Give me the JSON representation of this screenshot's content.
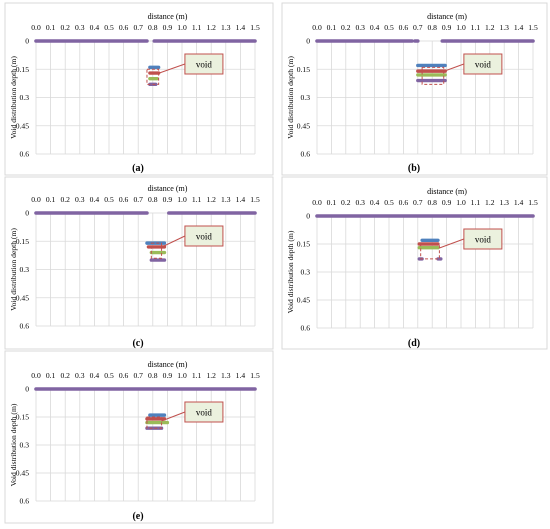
{
  "colors": {
    "surface": "#8064A2",
    "blue": "#4F81BD",
    "red": "#C0504D",
    "green": "#9BBB59",
    "purple": "#8064A2",
    "orange": "#F79646",
    "void_fill": "#EBF1DE",
    "void_border": "#C0504D",
    "grid": "#D9D9D9"
  },
  "chart_data": [
    {
      "type": "line",
      "panel_label": "(a)",
      "xlabel": "distance (m)",
      "ylabel": "Void distribution depth (m)",
      "x_ticks": [
        "0.0",
        "0.1",
        "0.2",
        "0.3",
        "0.4",
        "0.5",
        "0.6",
        "0.7",
        "0.8",
        "0.9",
        "1.0",
        "1.1",
        "1.2",
        "1.3",
        "1.4",
        "1.5"
      ],
      "y_ticks": [
        "0",
        "0.15",
        "0.3",
        "0.45",
        "0.6"
      ],
      "xlim": [
        0,
        1.5
      ],
      "ylim": [
        0,
        0.6
      ],
      "y_inverted": true,
      "x_axis_position": "top",
      "annotation": "void",
      "surface_segments": [
        [
          0,
          0.76
        ],
        [
          0.81,
          1.5
        ]
      ],
      "series": [
        {
          "color": "blue",
          "segments": [
            {
              "x": [
                0.78,
                0.84
              ],
              "y": 0.14
            }
          ]
        },
        {
          "color": "red",
          "segments": [
            {
              "x": [
                0.78,
                0.84
              ],
              "y": 0.17
            }
          ]
        },
        {
          "color": "green",
          "segments": [
            {
              "x": [
                0.78,
                0.83
              ],
              "y": 0.2
            }
          ]
        },
        {
          "color": "purple",
          "segments": [
            {
              "x": [
                0.78,
                0.82
              ],
              "y": 0.23
            }
          ]
        }
      ],
      "void_box": {
        "x": [
          0.76,
          0.84
        ],
        "y": [
          0.15,
          0.23
        ]
      }
    },
    {
      "type": "line",
      "panel_label": "(b)",
      "xlabel": "distance (m)",
      "ylabel": "Void distribution depth (m)",
      "x_ticks": [
        "0.0",
        "0.1",
        "0.2",
        "0.3",
        "0.4",
        "0.5",
        "0.6",
        "0.7",
        "0.8",
        "0.9",
        "1.0",
        "1.1",
        "1.2",
        "1.3",
        "1.4",
        "1.5"
      ],
      "y_ticks": [
        "0",
        "0.15",
        "0.3",
        "0.45",
        "0.6"
      ],
      "xlim": [
        0,
        1.5
      ],
      "ylim": [
        0,
        0.6
      ],
      "y_inverted": true,
      "x_axis_position": "top",
      "annotation": "void",
      "surface_segments": [
        [
          0,
          0.66
        ],
        [
          0.68,
          0.7
        ],
        [
          0.87,
          1.5
        ]
      ],
      "series": [
        {
          "color": "blue",
          "segments": [
            {
              "x": [
                0.7,
                0.89
              ],
              "y": 0.13
            }
          ]
        },
        {
          "color": "red",
          "segments": [
            {
              "x": [
                0.7,
                0.89
              ],
              "y": 0.16
            }
          ]
        },
        {
          "color": "green",
          "segments": [
            {
              "x": [
                0.7,
                0.89
              ],
              "y": 0.18
            }
          ]
        },
        {
          "color": "purple",
          "segments": [
            {
              "x": [
                0.7,
                0.89
              ],
              "y": 0.21
            }
          ]
        }
      ],
      "void_box": {
        "x": [
          0.73,
          0.88
        ],
        "y": [
          0.14,
          0.23
        ]
      }
    },
    {
      "type": "line",
      "panel_label": "(c)",
      "xlabel": "distance (m)",
      "ylabel": "Void distribution depth (m)",
      "x_ticks": [
        "0.0",
        "0.1",
        "0.2",
        "0.3",
        "0.4",
        "0.5",
        "0.6",
        "0.7",
        "0.8",
        "0.9",
        "1.0",
        "1.1",
        "1.2",
        "1.3",
        "1.4",
        "1.5"
      ],
      "y_ticks": [
        "0",
        "0.15",
        "0.3",
        "0.45",
        "0.6"
      ],
      "xlim": [
        0,
        1.5
      ],
      "ylim": [
        0,
        0.6
      ],
      "y_inverted": true,
      "x_axis_position": "top",
      "annotation": "void",
      "surface_segments": [
        [
          0,
          0.76
        ],
        [
          0.91,
          1.5
        ]
      ],
      "series": [
        {
          "color": "blue",
          "segments": [
            {
              "x": [
                0.76,
                0.88
              ],
              "y": 0.16
            }
          ]
        },
        {
          "color": "red",
          "segments": [
            {
              "x": [
                0.77,
                0.88
              ],
              "y": 0.18
            }
          ]
        },
        {
          "color": "green",
          "segments": [
            {
              "x": [
                0.79,
                0.88
              ],
              "y": 0.21
            }
          ]
        },
        {
          "color": "purple",
          "segments": [
            {
              "x": [
                0.79,
                0.88
              ],
              "y": 0.25
            }
          ]
        }
      ],
      "void_box": {
        "x": [
          0.79,
          0.86
        ],
        "y": [
          0.16,
          0.24
        ]
      }
    },
    {
      "type": "line",
      "panel_label": "(d)",
      "xlabel": "distance (m)",
      "ylabel": "Void distribution depth (m)",
      "x_ticks": [
        "0.0",
        "0.1",
        "0.2",
        "0.3",
        "0.4",
        "0.5",
        "0.6",
        "0.7",
        "0.8",
        "0.9",
        "1.0",
        "1.1",
        "1.2",
        "1.3",
        "1.4",
        "1.5"
      ],
      "y_ticks": [
        "0",
        "0.15",
        "0.3",
        "0.45",
        "0.6"
      ],
      "xlim": [
        0,
        1.5
      ],
      "ylim": [
        0,
        0.6
      ],
      "y_inverted": true,
      "x_axis_position": "top",
      "annotation": "void",
      "surface_segments": [
        [
          0,
          1.5
        ]
      ],
      "series": [
        {
          "color": "blue",
          "segments": [
            {
              "x": [
                0.73,
                0.84
              ],
              "y": 0.13
            }
          ]
        },
        {
          "color": "red",
          "segments": [
            {
              "x": [
                0.71,
                0.84
              ],
              "y": 0.15
            }
          ]
        },
        {
          "color": "green",
          "segments": [
            {
              "x": [
                0.71,
                0.84
              ],
              "y": 0.17
            }
          ]
        },
        {
          "color": "purple",
          "segments": [
            {
              "x": [
                0.71,
                0.73
              ],
              "y": 0.23
            },
            {
              "x": [
                0.84,
                0.86
              ],
              "y": 0.23
            }
          ]
        }
      ],
      "void_box": {
        "x": [
          0.72,
          0.85
        ],
        "y": [
          0.15,
          0.23
        ]
      }
    },
    {
      "type": "line",
      "panel_label": "(e)",
      "xlabel": "distance (m)",
      "ylabel": "Void distribution depth (m)",
      "x_ticks": [
        "0.0",
        "0.1",
        "0.2",
        "0.3",
        "0.4",
        "0.5",
        "0.6",
        "0.7",
        "0.8",
        "0.9",
        "1.0",
        "1.1",
        "1.2",
        "1.3",
        "1.4",
        "1.5"
      ],
      "y_ticks": [
        "0",
        "0.15",
        "0.3",
        "0.45",
        "0.6"
      ],
      "xlim": [
        0,
        1.5
      ],
      "ylim": [
        0,
        0.6
      ],
      "y_inverted": true,
      "x_axis_position": "top",
      "annotation": "void",
      "surface_segments": [
        [
          0,
          1.5
        ]
      ],
      "series": [
        {
          "color": "blue",
          "segments": [
            {
              "x": [
                0.78,
                0.88
              ],
              "y": 0.14
            }
          ]
        },
        {
          "color": "red",
          "segments": [
            {
              "x": [
                0.76,
                0.88
              ],
              "y": 0.16
            }
          ]
        },
        {
          "color": "green",
          "segments": [
            {
              "x": [
                0.76,
                0.9
              ],
              "y": 0.18
            }
          ]
        },
        {
          "color": "purple",
          "segments": [
            {
              "x": [
                0.76,
                0.86
              ],
              "y": 0.21
            }
          ]
        }
      ],
      "void_box": {
        "x": [
          0.76,
          0.86
        ],
        "y": [
          0.15,
          0.21
        ]
      }
    }
  ]
}
